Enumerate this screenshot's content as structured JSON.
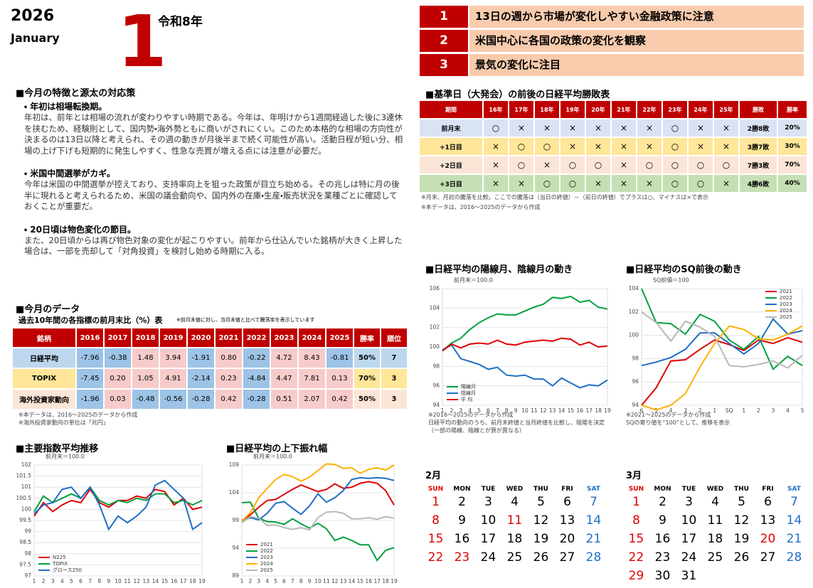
{
  "header": {
    "year": "2026",
    "month_en": "January",
    "month_num": "1",
    "era": "令和8年"
  },
  "points": [
    {
      "num": "1",
      "text": "13日の週から市場が変化しやすい金融政策に注意"
    },
    {
      "num": "2",
      "text": "米国中心に各国の政策の変化を観察"
    },
    {
      "num": "3",
      "text": "景気の変化に注目"
    }
  ],
  "features": {
    "title": "■今月の特徴と源太の対応策",
    "items": [
      {
        "heading": "・ 年初は相場転換期。",
        "body": "年初は、前年とは相場の流れが変わりやすい時期である。今年は、年明けから1週間経過した後に3連休を挟むため、経験則として、国内勢・海外勢ともに商いがされにくい。このため本格的な相場の方向性が決まるのは13日以降と考えられ、その週の動きが月後半まで続く可能性が高い。活動日程が短い分、相場の上げ下げも短期的に発生しやすく、性急な売買が増える点には注意が必要だ。"
      },
      {
        "heading": "・ 米国中間選挙がカギ。",
        "body": "今年は米国の中間選挙が控えており、支持率向上を狙った政策が目立ち始める。その兆しは特に月の後半に現れると考えられるため、米国の議会動向や、国内外の在庫・生産・販売状況を業種ごとに確認しておくことが重要だ。"
      },
      {
        "heading": "・ 20日頃は物色変化の節目。",
        "body": "また、20日頃からは再び物色対象の変化が起こりやすい。前年から仕込んでいた銘柄が大きく上昇した場合は、一部を売却して「対角投資」を検討し始める時期に入る。"
      }
    ]
  },
  "monthly_data": {
    "title": "■今月のデータ",
    "subtitle": "過去10年間の各指標の前月末比（%）表",
    "subnote": "※前月末値に対し、当月末値と比べて騰落率を表示しています",
    "header": [
      "銘柄",
      "2016",
      "2017",
      "2018",
      "2019",
      "2020",
      "2021",
      "2022",
      "2023",
      "2024",
      "2025",
      "勝率",
      "順位"
    ],
    "rows": [
      [
        "日経平均",
        "-7.96",
        "-0.38",
        "1.48",
        "3.94",
        "-1.91",
        "0.80",
        "-0.22",
        "4.72",
        "8.43",
        "-0.81",
        "50%",
        "7"
      ],
      [
        "TOPIX",
        "-7.45",
        "0.20",
        "1.05",
        "4.91",
        "-2.14",
        "0.23",
        "-4.84",
        "4.47",
        "7.81",
        "0.13",
        "70%",
        "3"
      ],
      [
        "海外投資家動向",
        "-1.96",
        "0.03",
        "-0.48",
        "-0.56",
        "-0.28",
        "0.42",
        "-0.28",
        "0.51",
        "2.07",
        "0.42",
        "50%",
        "3"
      ]
    ],
    "row_colors": [
      "#bdd7ee",
      "#ffe699",
      "#fbe5d6"
    ],
    "notes": [
      "※本データは、2016～2025のデータから作成",
      "※海外投資家動向の単位は「兆円」"
    ]
  },
  "win_table": {
    "title": "■基準日（大発会）の前後の日経平均勝敗表",
    "header": [
      "期間",
      "16年",
      "17年",
      "18年",
      "19年",
      "20年",
      "21年",
      "22年",
      "23年",
      "24年",
      "25年",
      "勝敗",
      "勝率"
    ],
    "rows": [
      [
        "前月末",
        "○",
        "×",
        "×",
        "×",
        "×",
        "×",
        "×",
        "○",
        "×",
        "×",
        "2勝8敗",
        "20%"
      ],
      [
        "+1日目",
        "×",
        "○",
        "○",
        "×",
        "×",
        "×",
        "×",
        "○",
        "×",
        "×",
        "3勝7敗",
        "30%"
      ],
      [
        "+2日目",
        "×",
        "○",
        "×",
        "○",
        "○",
        "×",
        "○",
        "○",
        "○",
        "○",
        "7勝3敗",
        "70%"
      ],
      [
        "+3日目",
        "×",
        "×",
        "○",
        "○",
        "×",
        "×",
        "×",
        "○",
        "○",
        "×",
        "4勝6敗",
        "40%"
      ]
    ],
    "row_colors": [
      "#dae3f3",
      "#ffe699",
      "#fbe5d6",
      "#c5e0b4"
    ],
    "notes": [
      "※月末、月初の騰落を比較。ここでの騰落は（当日の終値）－（前日の終値）でプラスは○、マイナスは×で表示",
      "※本データは、2016～2025のデータから作成"
    ]
  },
  "charts": [
    {
      "type": "line",
      "title": "■日経平均の陽線月、陰線月の動き",
      "ylabel": "前月末＝100.0",
      "categories": [
        1,
        2,
        3,
        4,
        5,
        6,
        7,
        8,
        9,
        10,
        11,
        12,
        13,
        14,
        15,
        16,
        17,
        18,
        19
      ],
      "ylim": [
        94,
        106
      ],
      "yticks": [
        94,
        96,
        98,
        100,
        102,
        104,
        106
      ],
      "grid": true,
      "legend": "lower left",
      "series": [
        {
          "name": "陽線月",
          "color": "#00a040",
          "values": [
            99.6,
            100.4,
            100.9,
            101.8,
            102.5,
            103,
            103.4,
            103.3,
            103.3,
            103.7,
            104.1,
            104.4,
            105.1,
            105,
            105.2,
            104.6,
            104.8,
            104.1,
            103.9
          ]
        },
        {
          "name": "陰線月",
          "color": "#1f6fc5",
          "values": [
            99.7,
            100.2,
            98.8,
            98.5,
            98.2,
            97.7,
            97.9,
            97.1,
            97,
            97.1,
            96.7,
            96.7,
            96,
            96.8,
            96.3,
            95.8,
            96.1,
            96,
            96.6
          ]
        },
        {
          "name": "平 均",
          "color": "#e00000",
          "values": [
            99.6,
            100.3,
            99.9,
            100.3,
            100.4,
            100.3,
            100.7,
            100.3,
            100.2,
            100.5,
            100.6,
            100.7,
            100.6,
            100.9,
            100.8,
            100.2,
            100.5,
            100,
            100.1
          ]
        }
      ],
      "notes": [
        "※2016～2025のデータから作成",
        "日経平均の動向のうち、前月末終値と当月終値を比較し、陰陽を決定（一部の陽線、陰線とが算が異なる）"
      ]
    },
    {
      "type": "line",
      "title": "■日経平均のSQ前後の動き",
      "ylabel": "SQ前値＝100",
      "categories": [
        "6",
        "5",
        "4",
        "3",
        "2",
        "1",
        "SQ",
        "1",
        "2",
        "3",
        "4",
        "5"
      ],
      "ylim": [
        94,
        104
      ],
      "yticks": [
        94,
        96,
        98,
        100,
        102,
        104
      ],
      "grid": true,
      "legend": "upper right",
      "series": [
        {
          "name": "2021",
          "color": "#e00000",
          "values": [
            94,
            95.5,
            97.8,
            97.9,
            98.8,
            99.6,
            99.2,
            98.7,
            99.6,
            99.3,
            99.8,
            99.4
          ]
        },
        {
          "name": "2022",
          "color": "#00a040",
          "values": [
            104,
            101.1,
            101,
            100.1,
            101.8,
            101.2,
            99.6,
            98.8,
            99.9,
            97.1,
            98.2,
            97.4
          ]
        },
        {
          "name": "2023",
          "color": "#1f6fc5",
          "values": [
            97.4,
            97.7,
            98.1,
            98.8,
            100.2,
            100.2,
            99.3,
            98.4,
            99.3,
            101.4,
            100.1,
            100.4
          ]
        },
        {
          "name": "2024",
          "color": "#ffb000",
          "values": [
            94,
            93.6,
            94,
            95,
            97.3,
            99.3,
            100.8,
            100.5,
            99.7,
            99.6,
            100.1,
            100.8
          ]
        },
        {
          "name": "2025",
          "color": "#b8b8b8",
          "values": [
            102,
            101.1,
            99.5,
            101.2,
            100.7,
            99.9,
            97.4,
            97.3,
            97.5,
            97.8,
            97.2,
            98.3
          ]
        }
      ],
      "notes": [
        "※2021～2025のデータから作成",
        "SQの寄り値を“100”として、推移を表示"
      ]
    },
    {
      "type": "line",
      "title": "■主要指数平均推移",
      "ylabel": "前月末＝100.0",
      "categories": [
        1,
        2,
        3,
        4,
        5,
        6,
        7,
        8,
        9,
        10,
        11,
        12,
        13,
        14,
        15,
        16,
        17,
        18,
        19
      ],
      "ylim": [
        97,
        102
      ],
      "yticks": [
        97,
        97.5,
        98,
        98.5,
        99,
        99.5,
        100,
        100.5,
        101,
        101.5,
        102
      ],
      "grid": true,
      "legend": "lower left",
      "series": [
        {
          "name": "N225",
          "color": "#e00000",
          "values": [
            99.7,
            100.3,
            99.9,
            100.2,
            100.4,
            100.3,
            100.9,
            100.3,
            100.1,
            100.4,
            100.4,
            100.6,
            100.5,
            100.9,
            100.8,
            100.2,
            100.5,
            100,
            100.1
          ]
        },
        {
          "name": "TOPIX",
          "color": "#00a040",
          "values": [
            99.9,
            100.6,
            100.3,
            100.5,
            100.7,
            100.5,
            101,
            100.4,
            100.2,
            100.4,
            100.3,
            100.5,
            100.4,
            100.7,
            100.7,
            100.3,
            100.4,
            100.2,
            100.4
          ]
        },
        {
          "name": "グロース250",
          "color": "#1f6fc5",
          "values": [
            99.8,
            100.2,
            100.3,
            100.9,
            101,
            100.5,
            101,
            100.2,
            99.1,
            99.7,
            99.4,
            99.7,
            100.1,
            101.1,
            101.3,
            100.9,
            100.5,
            99.1,
            99.4
          ]
        }
      ]
    },
    {
      "type": "line",
      "title": "■日経平均の上下振れ幅",
      "ylabel": "前月末＝100.0",
      "categories": [
        1,
        2,
        3,
        4,
        5,
        6,
        7,
        8,
        9,
        10,
        11,
        12,
        13,
        14,
        15,
        16,
        17,
        18,
        19
      ],
      "ylim": [
        89,
        109
      ],
      "yticks": [
        89,
        94,
        99,
        104,
        109
      ],
      "grid": true,
      "legend": "lower left",
      "series": [
        {
          "name": "2021",
          "color": "#e00000",
          "values": [
            99,
            100,
            101.4,
            102.6,
            102.8,
            103.7,
            104.6,
            105.4,
            104.8,
            104.2,
            104.6,
            105.6,
            104.8,
            105,
            105.7,
            106,
            105.7,
            104.4,
            101.8
          ]
        },
        {
          "name": "2022",
          "color": "#00a040",
          "values": [
            102.2,
            102.3,
            99.4,
            98.8,
            98.7,
            98.3,
            99.3,
            98.4,
            97.6,
            98.5,
            97.5,
            95.4,
            96,
            95.4,
            94.6,
            94.6,
            91.8,
            93.6,
            94.1
          ]
        },
        {
          "name": "2023",
          "color": "#1f6fc5",
          "values": [
            98.9,
            99.5,
            99.1,
            100.3,
            102.1,
            102.4,
            101.2,
            100.1,
            101.6,
            103.8,
            102.3,
            103.1,
            104.4,
            106.4,
            106.7,
            106.6,
            106.7,
            106.6,
            106.2
          ]
        },
        {
          "name": "2024",
          "color": "#ffb000",
          "values": [
            98.9,
            100.4,
            103.1,
            104.8,
            106.4,
            107.3,
            106.9,
            106.1,
            106.8,
            108,
            109.2,
            109.1,
            108.4,
            108.5,
            107.5,
            108.2,
            108.5,
            108.1,
            109
          ]
        },
        {
          "name": "2025",
          "color": "#b8b8b8",
          "values": [
            98.6,
            99.7,
            99.4,
            98.1,
            98.2,
            97.7,
            97.4,
            97.7,
            97.3,
            99.5,
            100.5,
            100.6,
            100.3,
            99.3,
            99.3,
            99.5,
            99.2,
            99.7,
            99.4
          ]
        }
      ]
    }
  ],
  "calendars": [
    {
      "title": "2月",
      "weekdays": [
        "SUN",
        "MON",
        "TUE",
        "WED",
        "THU",
        "FRI",
        "SAT"
      ],
      "days": [
        1,
        2,
        3,
        4,
        5,
        6,
        7,
        8,
        9,
        10,
        11,
        12,
        13,
        14,
        15,
        16,
        17,
        18,
        19,
        20,
        21,
        22,
        23,
        24,
        25,
        26,
        27,
        28
      ],
      "holidays": [
        11,
        23
      ]
    },
    {
      "title": "3月",
      "weekdays": [
        "SUN",
        "MON",
        "TUE",
        "WED",
        "THU",
        "FRI",
        "SAT"
      ],
      "days": [
        1,
        2,
        3,
        4,
        5,
        6,
        7,
        8,
        9,
        10,
        11,
        12,
        13,
        14,
        15,
        16,
        17,
        18,
        19,
        20,
        21,
        22,
        23,
        24,
        25,
        26,
        27,
        28,
        29,
        30,
        31
      ],
      "holidays": [
        20
      ]
    }
  ]
}
